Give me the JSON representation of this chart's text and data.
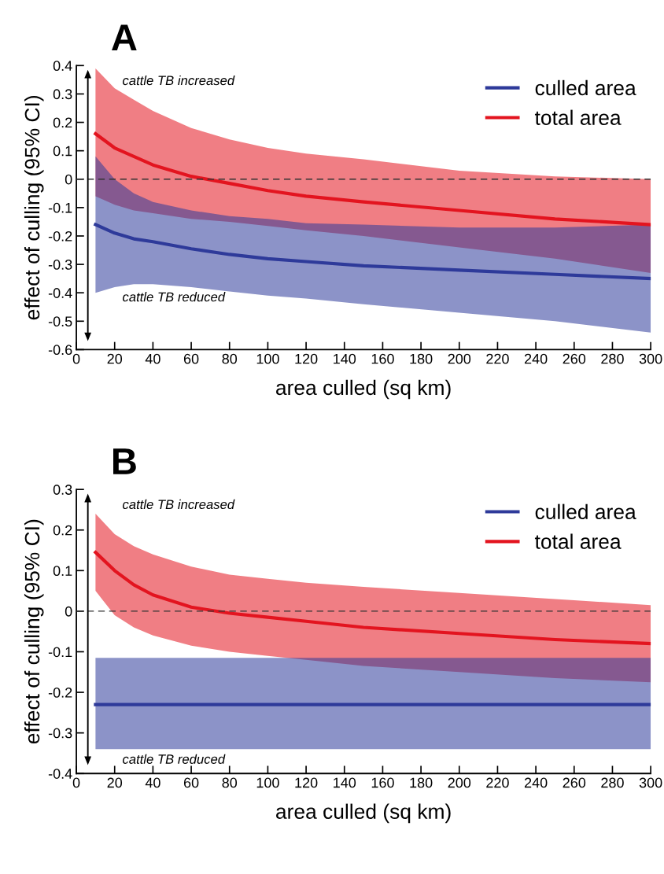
{
  "chart_data": [
    {
      "type": "line",
      "title": "A",
      "xlabel": "area culled (sq km)",
      "ylabel": "effect of culling (95% CI)",
      "xlim": [
        0,
        300
      ],
      "xticks": [
        0,
        20,
        40,
        60,
        80,
        100,
        120,
        140,
        160,
        180,
        200,
        220,
        240,
        260,
        280,
        300
      ],
      "ylim": [
        -0.6,
        0.4
      ],
      "yticks": [
        -0.6,
        -0.5,
        -0.4,
        -0.3,
        -0.2,
        -0.1,
        0,
        0.1,
        0.2,
        0.3,
        0.4
      ],
      "legend": "top right",
      "grid": false,
      "annotations": [
        "cattle TB increased",
        "cattle TB reduced"
      ],
      "ref_lines": [
        {
          "axis": "y",
          "value": 0,
          "color": "#333333",
          "line_style": "dashed"
        }
      ],
      "series": [
        {
          "name": "culled area",
          "color": "#2e3a9a",
          "x": [
            10,
            20,
            30,
            40,
            60,
            80,
            100,
            120,
            150,
            200,
            250,
            300
          ],
          "values": [
            -0.16,
            -0.19,
            -0.21,
            -0.22,
            -0.245,
            -0.265,
            -0.28,
            -0.29,
            -0.305,
            -0.32,
            -0.335,
            -0.35
          ],
          "upper": [
            0.08,
            0.0,
            -0.05,
            -0.08,
            -0.11,
            -0.13,
            -0.14,
            -0.155,
            -0.16,
            -0.17,
            -0.17,
            -0.16
          ],
          "lower": [
            -0.4,
            -0.38,
            -0.37,
            -0.37,
            -0.38,
            -0.395,
            -0.41,
            -0.42,
            -0.44,
            -0.47,
            -0.5,
            -0.54
          ]
        },
        {
          "name": "total area",
          "color": "#e3141f",
          "x": [
            10,
            20,
            30,
            40,
            60,
            80,
            100,
            120,
            150,
            200,
            250,
            300
          ],
          "values": [
            0.16,
            0.11,
            0.08,
            0.05,
            0.01,
            -0.015,
            -0.04,
            -0.06,
            -0.08,
            -0.11,
            -0.14,
            -0.16
          ],
          "upper": [
            0.39,
            0.32,
            0.28,
            0.24,
            0.18,
            0.14,
            0.11,
            0.09,
            0.07,
            0.03,
            0.01,
            0.0
          ],
          "lower": [
            -0.06,
            -0.09,
            -0.11,
            -0.12,
            -0.14,
            -0.15,
            -0.165,
            -0.18,
            -0.2,
            -0.24,
            -0.28,
            -0.33
          ]
        }
      ]
    },
    {
      "type": "line",
      "title": "B",
      "xlabel": "area culled (sq km)",
      "ylabel": "effect of culling (95% CI)",
      "xlim": [
        0,
        300
      ],
      "xticks": [
        0,
        20,
        40,
        60,
        80,
        100,
        120,
        140,
        160,
        180,
        200,
        220,
        240,
        260,
        280,
        300
      ],
      "ylim": [
        -0.4,
        0.3
      ],
      "yticks": [
        -0.4,
        -0.3,
        -0.2,
        -0.1,
        0,
        0.1,
        0.2,
        0.3
      ],
      "legend": "top right",
      "grid": false,
      "annotations": [
        "cattle TB increased",
        "cattle TB reduced"
      ],
      "ref_lines": [
        {
          "axis": "y",
          "value": 0,
          "color": "#333333",
          "line_style": "dashed"
        }
      ],
      "series": [
        {
          "name": "culled area",
          "color": "#2e3a9a",
          "x": [
            10,
            300
          ],
          "values": [
            -0.23,
            -0.23
          ],
          "upper": [
            -0.115,
            -0.115
          ],
          "lower": [
            -0.34,
            -0.34
          ]
        },
        {
          "name": "total area",
          "color": "#e3141f",
          "x": [
            10,
            20,
            30,
            40,
            60,
            80,
            100,
            120,
            150,
            200,
            250,
            300
          ],
          "values": [
            0.145,
            0.1,
            0.065,
            0.04,
            0.01,
            -0.005,
            -0.015,
            -0.025,
            -0.04,
            -0.055,
            -0.07,
            -0.08
          ],
          "upper": [
            0.24,
            0.19,
            0.16,
            0.14,
            0.11,
            0.09,
            0.08,
            0.07,
            0.06,
            0.045,
            0.03,
            0.015
          ],
          "lower": [
            0.05,
            -0.01,
            -0.04,
            -0.06,
            -0.085,
            -0.1,
            -0.11,
            -0.12,
            -0.135,
            -0.15,
            -0.165,
            -0.175
          ]
        }
      ]
    }
  ]
}
